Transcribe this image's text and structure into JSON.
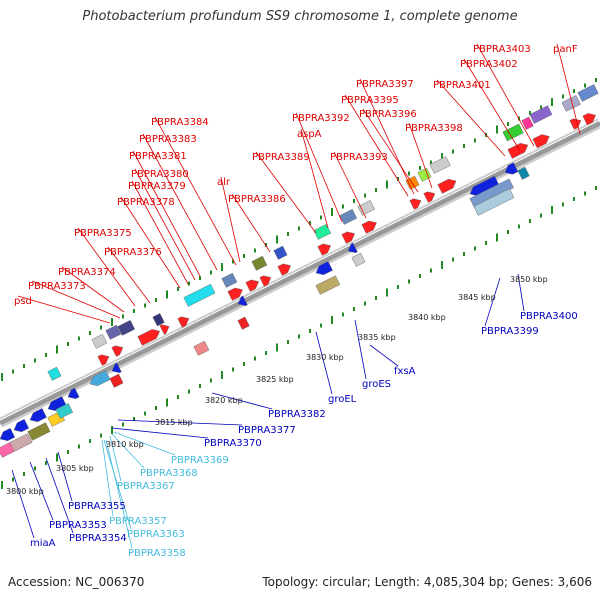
{
  "title": "Photobacterium profundum SS9 chromosome 1, complete genome",
  "footer": {
    "accession": "Accession: NC_006370",
    "summary": "Topology: circular; Length: 4,085,304 bp; Genes: 3,606"
  },
  "colors": {
    "forward_label": "#dd0000",
    "reverse_label": "#0000bb",
    "rna_label": "#44bbdd",
    "backbone": "#999999",
    "tick": "#228822"
  },
  "scale": {
    "unit": "kbp",
    "ticks": [
      "3800 kbp",
      "3805 kbp",
      "3810 kbp",
      "3815 kbp",
      "3820 kbp",
      "3825 kbp",
      "3830 kbp",
      "3835 kbp",
      "3840 kbp",
      "3845 kbp",
      "3850 kbp"
    ]
  },
  "forward_labels": [
    "psd",
    "PBPRA3373",
    "PBPRA3374",
    "PBPRA3375",
    "PBPRA3376",
    "PBPRA3378",
    "PBPRA3379",
    "PBPRA3380",
    "PBPRA3381",
    "PBPRA3383",
    "PBPRA3384",
    "alr",
    "PBPRA3386",
    "PBPRA3389",
    "aspA",
    "PBPRA3392",
    "PBPRA3393",
    "PBPRA3395",
    "PBPRA3396",
    "PBPRA3397",
    "PBPRA3398",
    "PBPRA3401",
    "PBPRA3402",
    "PBPRA3403",
    "panF"
  ],
  "reverse_labels": [
    "miaA",
    "PBPRA3353",
    "PBPRA3354",
    "PBPRA3355",
    "PBPRA3370",
    "PBPRA3377",
    "PBPRA3382",
    "groEL",
    "groES",
    "fxsA",
    "PBPRA3399",
    "PBPRA3400"
  ],
  "rna_labels": [
    "PBPRA3358",
    "PBPRA3363",
    "PBPRA3357",
    "PBPRA3367",
    "PBPRA3368",
    "PBPRA3369"
  ]
}
